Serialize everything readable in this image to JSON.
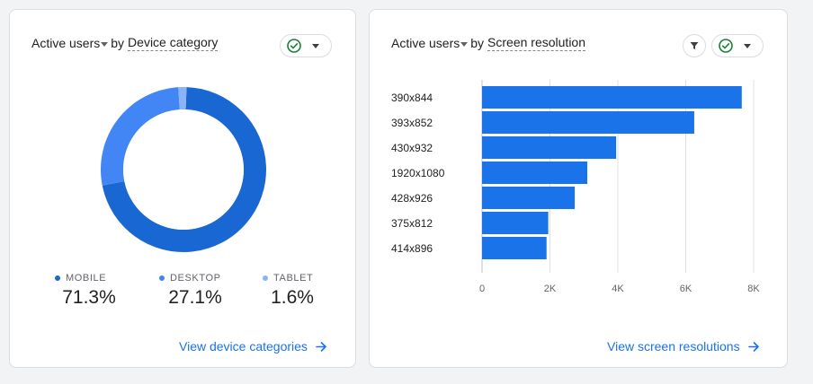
{
  "device_card": {
    "metric": "Active users",
    "by": "by",
    "dimension": "Device category",
    "legend": [
      {
        "label": "MOBILE",
        "value": "71.3%",
        "color": "#1967d2"
      },
      {
        "label": "DESKTOP",
        "value": "27.1%",
        "color": "#4285f4"
      },
      {
        "label": "TABLET",
        "value": "1.6%",
        "color": "#8ab4f8"
      }
    ],
    "link": "View device categories"
  },
  "resolution_card": {
    "metric": "Active users",
    "by": "by",
    "dimension": "Screen resolution",
    "link": "View screen resolutions"
  },
  "icons": {
    "check": "check-circle-icon",
    "filter": "filter-icon",
    "dropdown": "chevron-down-icon",
    "arrow": "arrow-right-icon"
  },
  "colors": {
    "accent": "#1a73e8",
    "bar": "#1a73e8",
    "check_green": "#188038"
  },
  "chart_data": [
    {
      "type": "pie",
      "title": "Active users by Device category",
      "categories": [
        "MOBILE",
        "DESKTOP",
        "TABLET"
      ],
      "values": [
        71.3,
        27.1,
        1.6
      ],
      "colors": [
        "#1967d2",
        "#4285f4",
        "#8ab4f8"
      ],
      "donut": true
    },
    {
      "type": "bar",
      "orientation": "horizontal",
      "title": "Active users by Screen resolution",
      "categories": [
        "390x844",
        "393x852",
        "430x932",
        "1920x1080",
        "428x926",
        "375x812",
        "414x896"
      ],
      "values": [
        7650,
        6250,
        3950,
        3100,
        2730,
        1950,
        1900
      ],
      "xlim": [
        0,
        8000
      ],
      "xticks": [
        0,
        2000,
        4000,
        6000,
        8000
      ],
      "xtick_labels": [
        "0",
        "2K",
        "4K",
        "6K",
        "8K"
      ],
      "grid": true
    }
  ]
}
